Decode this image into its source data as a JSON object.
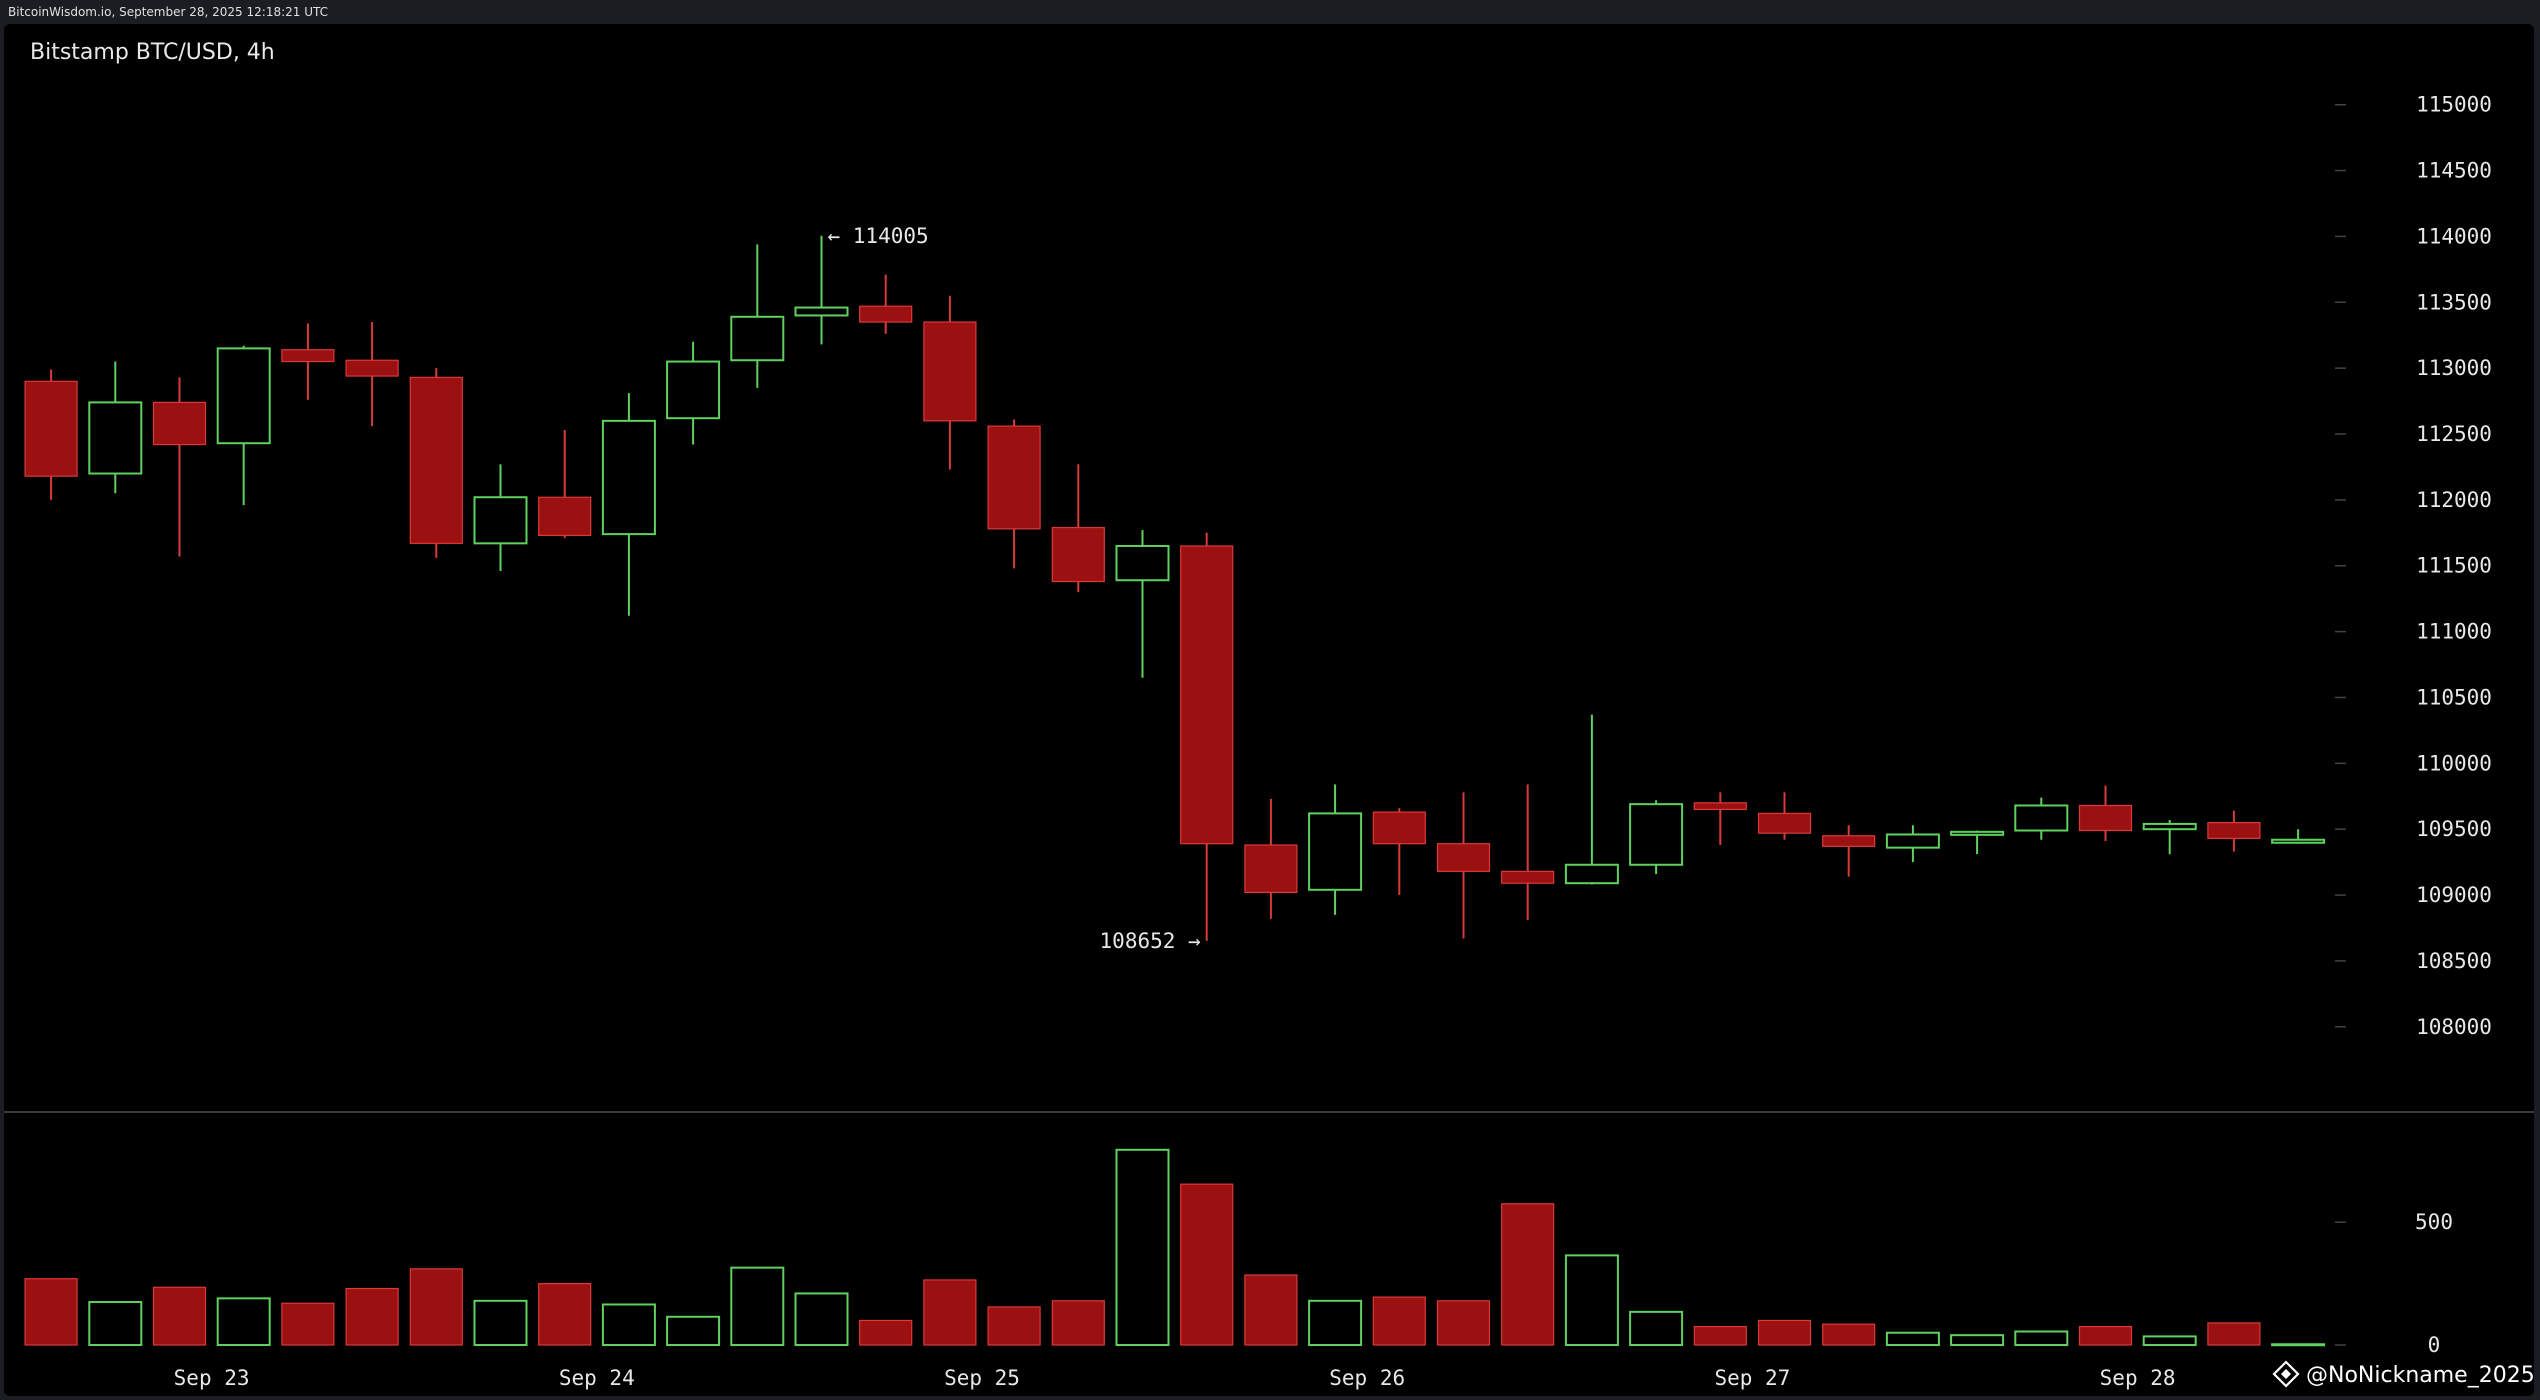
{
  "header": {
    "caption": "BitcoinWisdom.io, September 28, 2025 12:18:21 UTC"
  },
  "chart_data": {
    "type": "candlestick",
    "title": "Bitstamp BTC/USD, 4h",
    "interval": "4h",
    "price_axis": {
      "ylim": [
        107300,
        115400
      ],
      "ticks": [
        115000,
        114500,
        114000,
        113500,
        113000,
        112500,
        112000,
        111500,
        111000,
        110500,
        110000,
        109500,
        109000,
        108500,
        108000
      ],
      "side": "right"
    },
    "volume_axis": {
      "ylim": [
        0,
        900
      ],
      "ticks": [
        500,
        0
      ],
      "side": "right"
    },
    "x_labels": [
      {
        "label": "Sep 23",
        "at_candle": 2.5
      },
      {
        "label": "Sep 24",
        "at_candle": 8.5
      },
      {
        "label": "Sep 25",
        "at_candle": 14.5
      },
      {
        "label": "Sep 26",
        "at_candle": 20.5
      },
      {
        "label": "Sep 27",
        "at_candle": 26.5
      },
      {
        "label": "Sep 28",
        "at_candle": 32.5
      }
    ],
    "annotations": [
      {
        "text": "← 114005",
        "candle": 12,
        "price": 114005,
        "side": "right"
      },
      {
        "text": "108652 →",
        "candle": 18,
        "price": 108652,
        "side": "left"
      }
    ],
    "candles": [
      {
        "o": 112900,
        "h": 112990,
        "l": 112000,
        "c": 112180,
        "v": 270
      },
      {
        "o": 112200,
        "h": 113050,
        "l": 112050,
        "c": 112740,
        "v": 175
      },
      {
        "o": 112740,
        "h": 112930,
        "l": 111570,
        "c": 112420,
        "v": 235
      },
      {
        "o": 112430,
        "h": 113170,
        "l": 111960,
        "c": 113150,
        "v": 190
      },
      {
        "o": 113140,
        "h": 113340,
        "l": 112760,
        "c": 113050,
        "v": 170
      },
      {
        "o": 113060,
        "h": 113350,
        "l": 112560,
        "c": 112940,
        "v": 230
      },
      {
        "o": 112930,
        "h": 113000,
        "l": 111560,
        "c": 111670,
        "v": 310
      },
      {
        "o": 111670,
        "h": 112270,
        "l": 111460,
        "c": 112020,
        "v": 180
      },
      {
        "o": 112020,
        "h": 112530,
        "l": 111710,
        "c": 111730,
        "v": 250
      },
      {
        "o": 111740,
        "h": 112810,
        "l": 111120,
        "c": 112600,
        "v": 165
      },
      {
        "o": 112620,
        "h": 113200,
        "l": 112420,
        "c": 113050,
        "v": 115
      },
      {
        "o": 113060,
        "h": 113940,
        "l": 112850,
        "c": 113390,
        "v": 315
      },
      {
        "o": 113400,
        "h": 114005,
        "l": 113180,
        "c": 113460,
        "v": 210
      },
      {
        "o": 113470,
        "h": 113710,
        "l": 113260,
        "c": 113350,
        "v": 100
      },
      {
        "o": 113350,
        "h": 113550,
        "l": 112230,
        "c": 112600,
        "v": 265
      },
      {
        "o": 112560,
        "h": 112610,
        "l": 111480,
        "c": 111780,
        "v": 155
      },
      {
        "o": 111790,
        "h": 112270,
        "l": 111300,
        "c": 111380,
        "v": 180
      },
      {
        "o": 111390,
        "h": 111770,
        "l": 110650,
        "c": 111650,
        "v": 795
      },
      {
        "o": 111650,
        "h": 111750,
        "l": 108652,
        "c": 109390,
        "v": 655
      },
      {
        "o": 109380,
        "h": 109730,
        "l": 108820,
        "c": 109020,
        "v": 285
      },
      {
        "o": 109040,
        "h": 109840,
        "l": 108850,
        "c": 109620,
        "v": 180
      },
      {
        "o": 109630,
        "h": 109660,
        "l": 109000,
        "c": 109390,
        "v": 195
      },
      {
        "o": 109390,
        "h": 109780,
        "l": 108670,
        "c": 109180,
        "v": 180
      },
      {
        "o": 109180,
        "h": 109840,
        "l": 108810,
        "c": 109090,
        "v": 575
      },
      {
        "o": 109090,
        "h": 110370,
        "l": 109080,
        "c": 109230,
        "v": 365
      },
      {
        "o": 109230,
        "h": 109720,
        "l": 109160,
        "c": 109690,
        "v": 135
      },
      {
        "o": 109700,
        "h": 109780,
        "l": 109380,
        "c": 109650,
        "v": 75
      },
      {
        "o": 109620,
        "h": 109780,
        "l": 109420,
        "c": 109470,
        "v": 100
      },
      {
        "o": 109450,
        "h": 109530,
        "l": 109140,
        "c": 109370,
        "v": 85
      },
      {
        "o": 109360,
        "h": 109530,
        "l": 109250,
        "c": 109460,
        "v": 50
      },
      {
        "o": 109460,
        "h": 109490,
        "l": 109310,
        "c": 109480,
        "v": 40
      },
      {
        "o": 109490,
        "h": 109740,
        "l": 109420,
        "c": 109680,
        "v": 55
      },
      {
        "o": 109680,
        "h": 109830,
        "l": 109410,
        "c": 109490,
        "v": 75
      },
      {
        "o": 109500,
        "h": 109570,
        "l": 109310,
        "c": 109540,
        "v": 35
      },
      {
        "o": 109550,
        "h": 109640,
        "l": 109330,
        "c": 109430,
        "v": 90
      },
      {
        "o": 109420,
        "h": 109500,
        "l": 109390,
        "c": 109420,
        "v": 3
      }
    ]
  },
  "colors": {
    "up": "#5fd15f",
    "down": "#9b1111",
    "down_outline": "#d93a3a",
    "background": "#000000",
    "grid_tick": "#444444",
    "text": "#e8e8e8"
  },
  "footer": {
    "watermark_icon": "binance-logo-icon",
    "watermark_text": "@NoNickname_2025"
  }
}
